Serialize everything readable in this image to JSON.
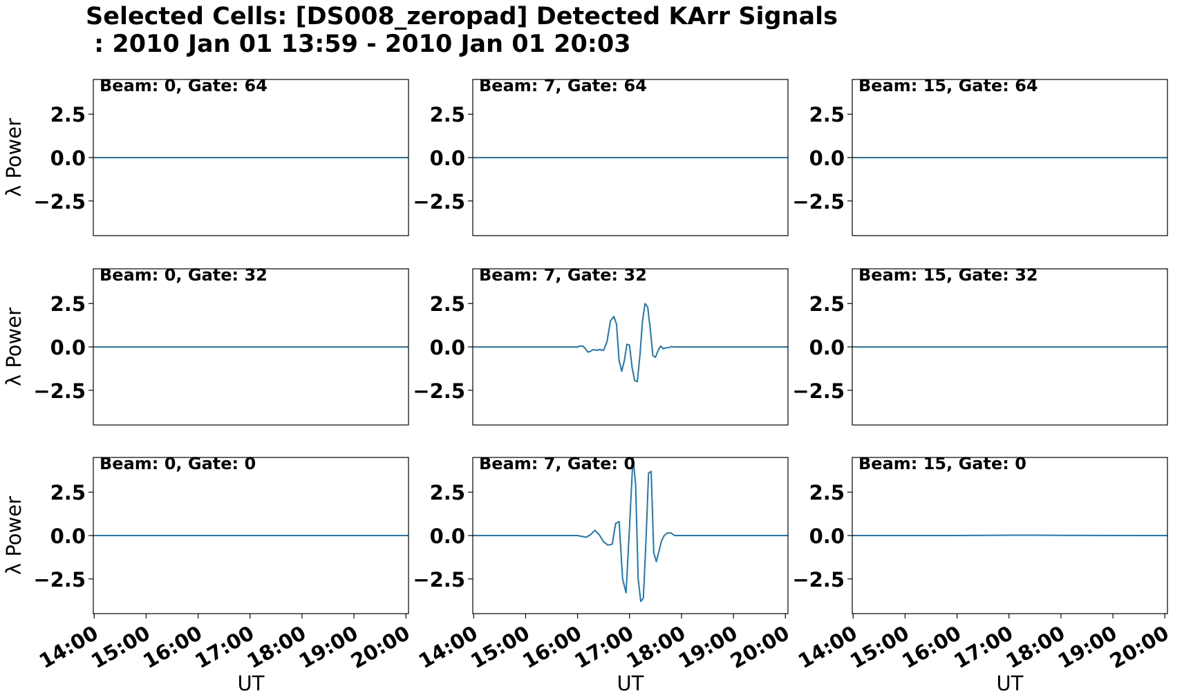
{
  "figure": {
    "title_line1": "Selected Cells: [DS008_zeropad] Detected KArr Signals",
    "title_line2": " : 2010 Jan 01 13:59 - 2010 Jan 01 20:03",
    "line_color": "#1f77b4"
  },
  "chart_data": [
    {
      "type": "line",
      "label": "Beam: 0, Gate: 64",
      "ylabel": "λ Power",
      "xlabel": "",
      "xlim": [
        "13:59",
        "20:03"
      ],
      "ylim": [
        -4.5,
        4.5
      ],
      "yticks": [
        "2.5",
        "0.0",
        "−2.5"
      ],
      "xticks": [],
      "series": [
        {
          "x": [
            "13:59",
            "20:03"
          ],
          "y": [
            0.0,
            0.0
          ]
        }
      ]
    },
    {
      "type": "line",
      "label": "Beam: 7, Gate: 64",
      "ylabel": "",
      "xlabel": "",
      "xlim": [
        "13:59",
        "20:03"
      ],
      "ylim": [
        -4.5,
        4.5
      ],
      "yticks": [
        "2.5",
        "0.0",
        "−2.5"
      ],
      "xticks": [],
      "series": [
        {
          "x": [
            "13:59",
            "20:03"
          ],
          "y": [
            0.0,
            0.0
          ]
        }
      ]
    },
    {
      "type": "line",
      "label": "Beam: 15, Gate: 64",
      "ylabel": "",
      "xlabel": "",
      "xlim": [
        "13:59",
        "20:03"
      ],
      "ylim": [
        -4.5,
        4.5
      ],
      "yticks": [
        "2.5",
        "0.0",
        "−2.5"
      ],
      "xticks": [],
      "series": [
        {
          "x": [
            "13:59",
            "20:03"
          ],
          "y": [
            0.0,
            0.0
          ]
        }
      ]
    },
    {
      "type": "line",
      "label": "Beam: 0, Gate: 32",
      "ylabel": "λ Power",
      "xlabel": "",
      "xlim": [
        "13:59",
        "20:03"
      ],
      "ylim": [
        -4.5,
        4.5
      ],
      "yticks": [
        "2.5",
        "0.0",
        "−2.5"
      ],
      "xticks": [],
      "series": [
        {
          "x": [
            "13:59",
            "20:03"
          ],
          "y": [
            0.0,
            0.0
          ]
        }
      ]
    },
    {
      "type": "line",
      "label": "Beam: 7, Gate: 32",
      "ylabel": "",
      "xlabel": "",
      "xlim": [
        "13:59",
        "20:03"
      ],
      "ylim": [
        -4.5,
        4.5
      ],
      "yticks": [
        "2.5",
        "0.0",
        "−2.5"
      ],
      "xticks": [],
      "series": [
        {
          "x": [
            "13:59",
            "16:00",
            "16:03",
            "16:06",
            "16:09",
            "16:12",
            "16:15",
            "16:18",
            "16:22",
            "16:26",
            "16:30",
            "16:34",
            "16:38",
            "16:42",
            "16:45",
            "16:48",
            "16:51",
            "16:54",
            "16:57",
            "17:00",
            "17:03",
            "17:06",
            "17:09",
            "17:12",
            "17:15",
            "17:18",
            "17:21",
            "17:24",
            "17:27",
            "17:30",
            "17:33",
            "17:36",
            "17:39",
            "17:42",
            "17:45",
            "17:48",
            "17:51",
            "17:54",
            "17:57",
            "18:00",
            "20:03"
          ],
          "y": [
            0.0,
            0.0,
            0.05,
            0.05,
            -0.1,
            -0.3,
            -0.25,
            -0.15,
            -0.2,
            -0.15,
            -0.2,
            0.3,
            1.5,
            1.75,
            1.3,
            -0.8,
            -1.4,
            -0.8,
            0.15,
            0.1,
            -1.2,
            -1.95,
            -2.0,
            -0.5,
            1.5,
            2.5,
            2.3,
            1.0,
            -0.5,
            -0.6,
            -0.2,
            0.05,
            -0.1,
            -0.05,
            -0.05,
            0.02,
            0.0,
            0.0,
            0.0,
            0.0,
            0.0
          ]
        }
      ]
    },
    {
      "type": "line",
      "label": "Beam: 15, Gate: 32",
      "ylabel": "",
      "xlabel": "",
      "xlim": [
        "13:59",
        "20:03"
      ],
      "ylim": [
        -4.5,
        4.5
      ],
      "yticks": [
        "2.5",
        "0.0",
        "−2.5"
      ],
      "xticks": [],
      "series": [
        {
          "x": [
            "13:59",
            "20:03"
          ],
          "y": [
            0.0,
            0.0
          ]
        }
      ]
    },
    {
      "type": "line",
      "label": "Beam: 0, Gate: 0",
      "ylabel": "λ Power",
      "xlabel": "UT",
      "xlim": [
        "13:59",
        "20:03"
      ],
      "ylim": [
        -4.5,
        4.5
      ],
      "yticks": [
        "2.5",
        "0.0",
        "−2.5"
      ],
      "xticks": [
        "14:00",
        "15:00",
        "16:00",
        "17:00",
        "18:00",
        "19:00",
        "20:00"
      ],
      "series": [
        {
          "x": [
            "13:59",
            "20:03"
          ],
          "y": [
            0.0,
            0.0
          ]
        }
      ]
    },
    {
      "type": "line",
      "label": "Beam: 7, Gate: 0",
      "ylabel": "",
      "xlabel": "UT",
      "xlim": [
        "13:59",
        "20:03"
      ],
      "ylim": [
        -4.5,
        4.5
      ],
      "yticks": [
        "2.5",
        "0.0",
        "−2.5"
      ],
      "xticks": [
        "14:00",
        "15:00",
        "16:00",
        "17:00",
        "18:00",
        "19:00",
        "20:00"
      ],
      "series": [
        {
          "x": [
            "13:59",
            "16:00",
            "16:05",
            "16:10",
            "16:15",
            "16:20",
            "16:25",
            "16:30",
            "16:35",
            "16:40",
            "16:44",
            "16:48",
            "16:52",
            "16:56",
            "17:00",
            "17:04",
            "17:07",
            "17:10",
            "17:13",
            "17:16",
            "17:19",
            "17:22",
            "17:25",
            "17:28",
            "17:31",
            "17:34",
            "17:37",
            "17:40",
            "17:44",
            "17:48",
            "17:52",
            "17:56",
            "18:00",
            "20:03"
          ],
          "y": [
            0.0,
            0.0,
            -0.05,
            -0.1,
            0.05,
            0.3,
            0.05,
            -0.35,
            -0.55,
            -0.5,
            0.7,
            0.8,
            -2.5,
            -3.3,
            0.5,
            4.5,
            3.0,
            -2.5,
            -3.8,
            -3.6,
            -0.3,
            3.6,
            3.7,
            -1.0,
            -1.5,
            -0.9,
            -0.3,
            0.0,
            0.15,
            0.15,
            0.0,
            0.0,
            0.0,
            0.0
          ]
        }
      ]
    },
    {
      "type": "line",
      "label": "Beam: 15, Gate: 0",
      "ylabel": "",
      "xlabel": "UT",
      "xlim": [
        "13:59",
        "20:03"
      ],
      "ylim": [
        -4.5,
        4.5
      ],
      "yticks": [
        "2.5",
        "0.0",
        "−2.5"
      ],
      "xticks": [
        "14:00",
        "15:00",
        "16:00",
        "17:00",
        "18:00",
        "19:00",
        "20:00"
      ],
      "series": [
        {
          "x": [
            "13:59",
            "16:00",
            "16:30",
            "17:00",
            "17:30",
            "18:00",
            "20:03"
          ],
          "y": [
            0.0,
            0.0,
            0.01,
            0.02,
            0.02,
            0.01,
            0.0
          ]
        }
      ]
    }
  ]
}
